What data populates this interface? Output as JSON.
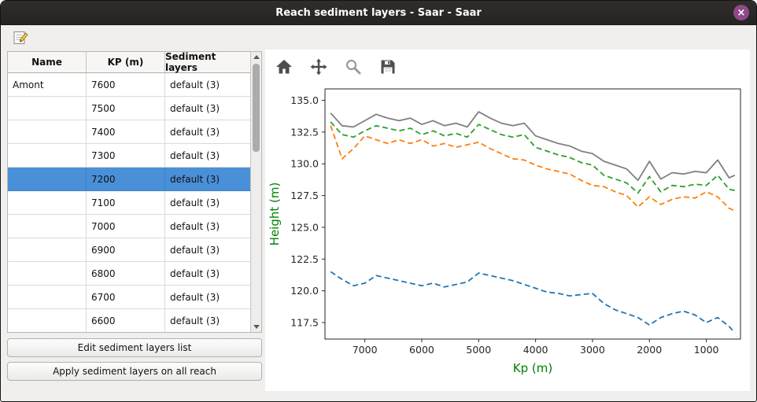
{
  "window": {
    "title": "Reach sediment layers - Saar - Saar",
    "close_glyph": "×"
  },
  "colors": {
    "titlebar": "#2b2826",
    "close_button": "#8d4a87",
    "selection": "#4a90d9",
    "axis_label": "#008000"
  },
  "table": {
    "headers": [
      "Name",
      "KP (m)",
      "Sediment layers"
    ],
    "rows": [
      {
        "name": "Amont",
        "kp": "7600",
        "layers": "default (3)",
        "selected": false
      },
      {
        "name": "",
        "kp": "7500",
        "layers": "default (3)",
        "selected": false
      },
      {
        "name": "",
        "kp": "7400",
        "layers": "default (3)",
        "selected": false
      },
      {
        "name": "",
        "kp": "7300",
        "layers": "default (3)",
        "selected": false
      },
      {
        "name": "",
        "kp": "7200",
        "layers": "default (3)",
        "selected": true
      },
      {
        "name": "",
        "kp": "7100",
        "layers": "default (3)",
        "selected": false
      },
      {
        "name": "",
        "kp": "7000",
        "layers": "default (3)",
        "selected": false
      },
      {
        "name": "",
        "kp": "6900",
        "layers": "default (3)",
        "selected": false
      },
      {
        "name": "",
        "kp": "6800",
        "layers": "default (3)",
        "selected": false
      },
      {
        "name": "",
        "kp": "6700",
        "layers": "default (3)",
        "selected": false
      },
      {
        "name": "",
        "kp": "6600",
        "layers": "default (3)",
        "selected": false
      }
    ]
  },
  "buttons": {
    "edit": "Edit sediment layers list",
    "apply": "Apply sediment layers on all reach"
  },
  "plot_toolbar": {
    "icons": [
      "home-icon",
      "pan-icon",
      "zoom-icon",
      "save-icon"
    ]
  },
  "chart_data": {
    "type": "line",
    "title": "",
    "xlabel": "Kp (m)",
    "ylabel": "Height (m)",
    "axis_label_color": "#008000",
    "x_inverted": true,
    "xlim": [
      7700,
      400
    ],
    "ylim": [
      116.2,
      135.9
    ],
    "xticks": [
      7000,
      6000,
      5000,
      4000,
      3000,
      2000,
      1000
    ],
    "yticks": [
      117.5,
      120.0,
      122.5,
      125.0,
      127.5,
      130.0,
      132.5,
      135.0
    ],
    "grid": false,
    "legend": false,
    "x": [
      7600,
      7400,
      7200,
      7000,
      6800,
      6600,
      6400,
      6200,
      6000,
      5800,
      5600,
      5400,
      5200,
      5000,
      4800,
      4600,
      4400,
      4200,
      4000,
      3800,
      3600,
      3400,
      3200,
      3000,
      2800,
      2600,
      2400,
      2200,
      2000,
      1800,
      1600,
      1400,
      1200,
      1000,
      800,
      600,
      500
    ],
    "series": [
      {
        "name": "gray-solid",
        "color": "#808080",
        "style": "solid",
        "values": [
          134.0,
          133.0,
          132.9,
          133.4,
          133.9,
          133.6,
          133.4,
          133.6,
          133.1,
          133.4,
          133.0,
          133.2,
          132.9,
          134.1,
          133.6,
          133.2,
          133.0,
          133.2,
          132.2,
          131.9,
          131.6,
          131.4,
          131.0,
          130.8,
          130.2,
          129.9,
          129.6,
          128.7,
          130.2,
          128.8,
          129.3,
          129.2,
          129.4,
          129.3,
          130.3,
          128.9,
          129.1
        ]
      },
      {
        "name": "green-dashed",
        "color": "#2ca02c",
        "style": "dashed",
        "values": [
          133.3,
          132.3,
          132.1,
          132.6,
          133.0,
          132.8,
          132.6,
          132.8,
          132.3,
          132.6,
          132.2,
          132.4,
          132.1,
          133.1,
          132.7,
          132.3,
          132.1,
          132.3,
          131.3,
          131.0,
          130.7,
          130.5,
          130.1,
          129.9,
          129.1,
          128.8,
          128.5,
          127.7,
          129.0,
          127.8,
          128.3,
          128.2,
          128.4,
          128.3,
          129.1,
          128.0,
          127.9
        ]
      },
      {
        "name": "orange-dashed",
        "color": "#ff7f0e",
        "style": "dashed",
        "values": [
          133.0,
          130.4,
          131.2,
          132.2,
          131.9,
          131.6,
          131.9,
          131.6,
          131.9,
          131.4,
          131.6,
          131.3,
          131.5,
          131.7,
          131.2,
          130.8,
          130.4,
          130.3,
          129.9,
          129.6,
          129.4,
          129.2,
          128.7,
          128.3,
          128.2,
          127.8,
          127.5,
          126.6,
          127.4,
          126.8,
          127.2,
          127.4,
          127.3,
          127.8,
          127.4,
          126.5,
          126.3
        ]
      },
      {
        "name": "blue-dashed",
        "color": "#1f77b4",
        "style": "dashed",
        "values": [
          121.5,
          120.9,
          120.4,
          120.6,
          121.2,
          121.0,
          120.8,
          120.6,
          120.4,
          120.6,
          120.3,
          120.5,
          120.7,
          121.4,
          121.2,
          121.0,
          120.8,
          120.5,
          120.2,
          119.9,
          119.8,
          119.6,
          119.7,
          119.8,
          119.0,
          118.5,
          118.2,
          117.9,
          117.3,
          117.9,
          118.2,
          118.4,
          118.1,
          117.5,
          117.9,
          117.2,
          116.7
        ]
      }
    ]
  }
}
